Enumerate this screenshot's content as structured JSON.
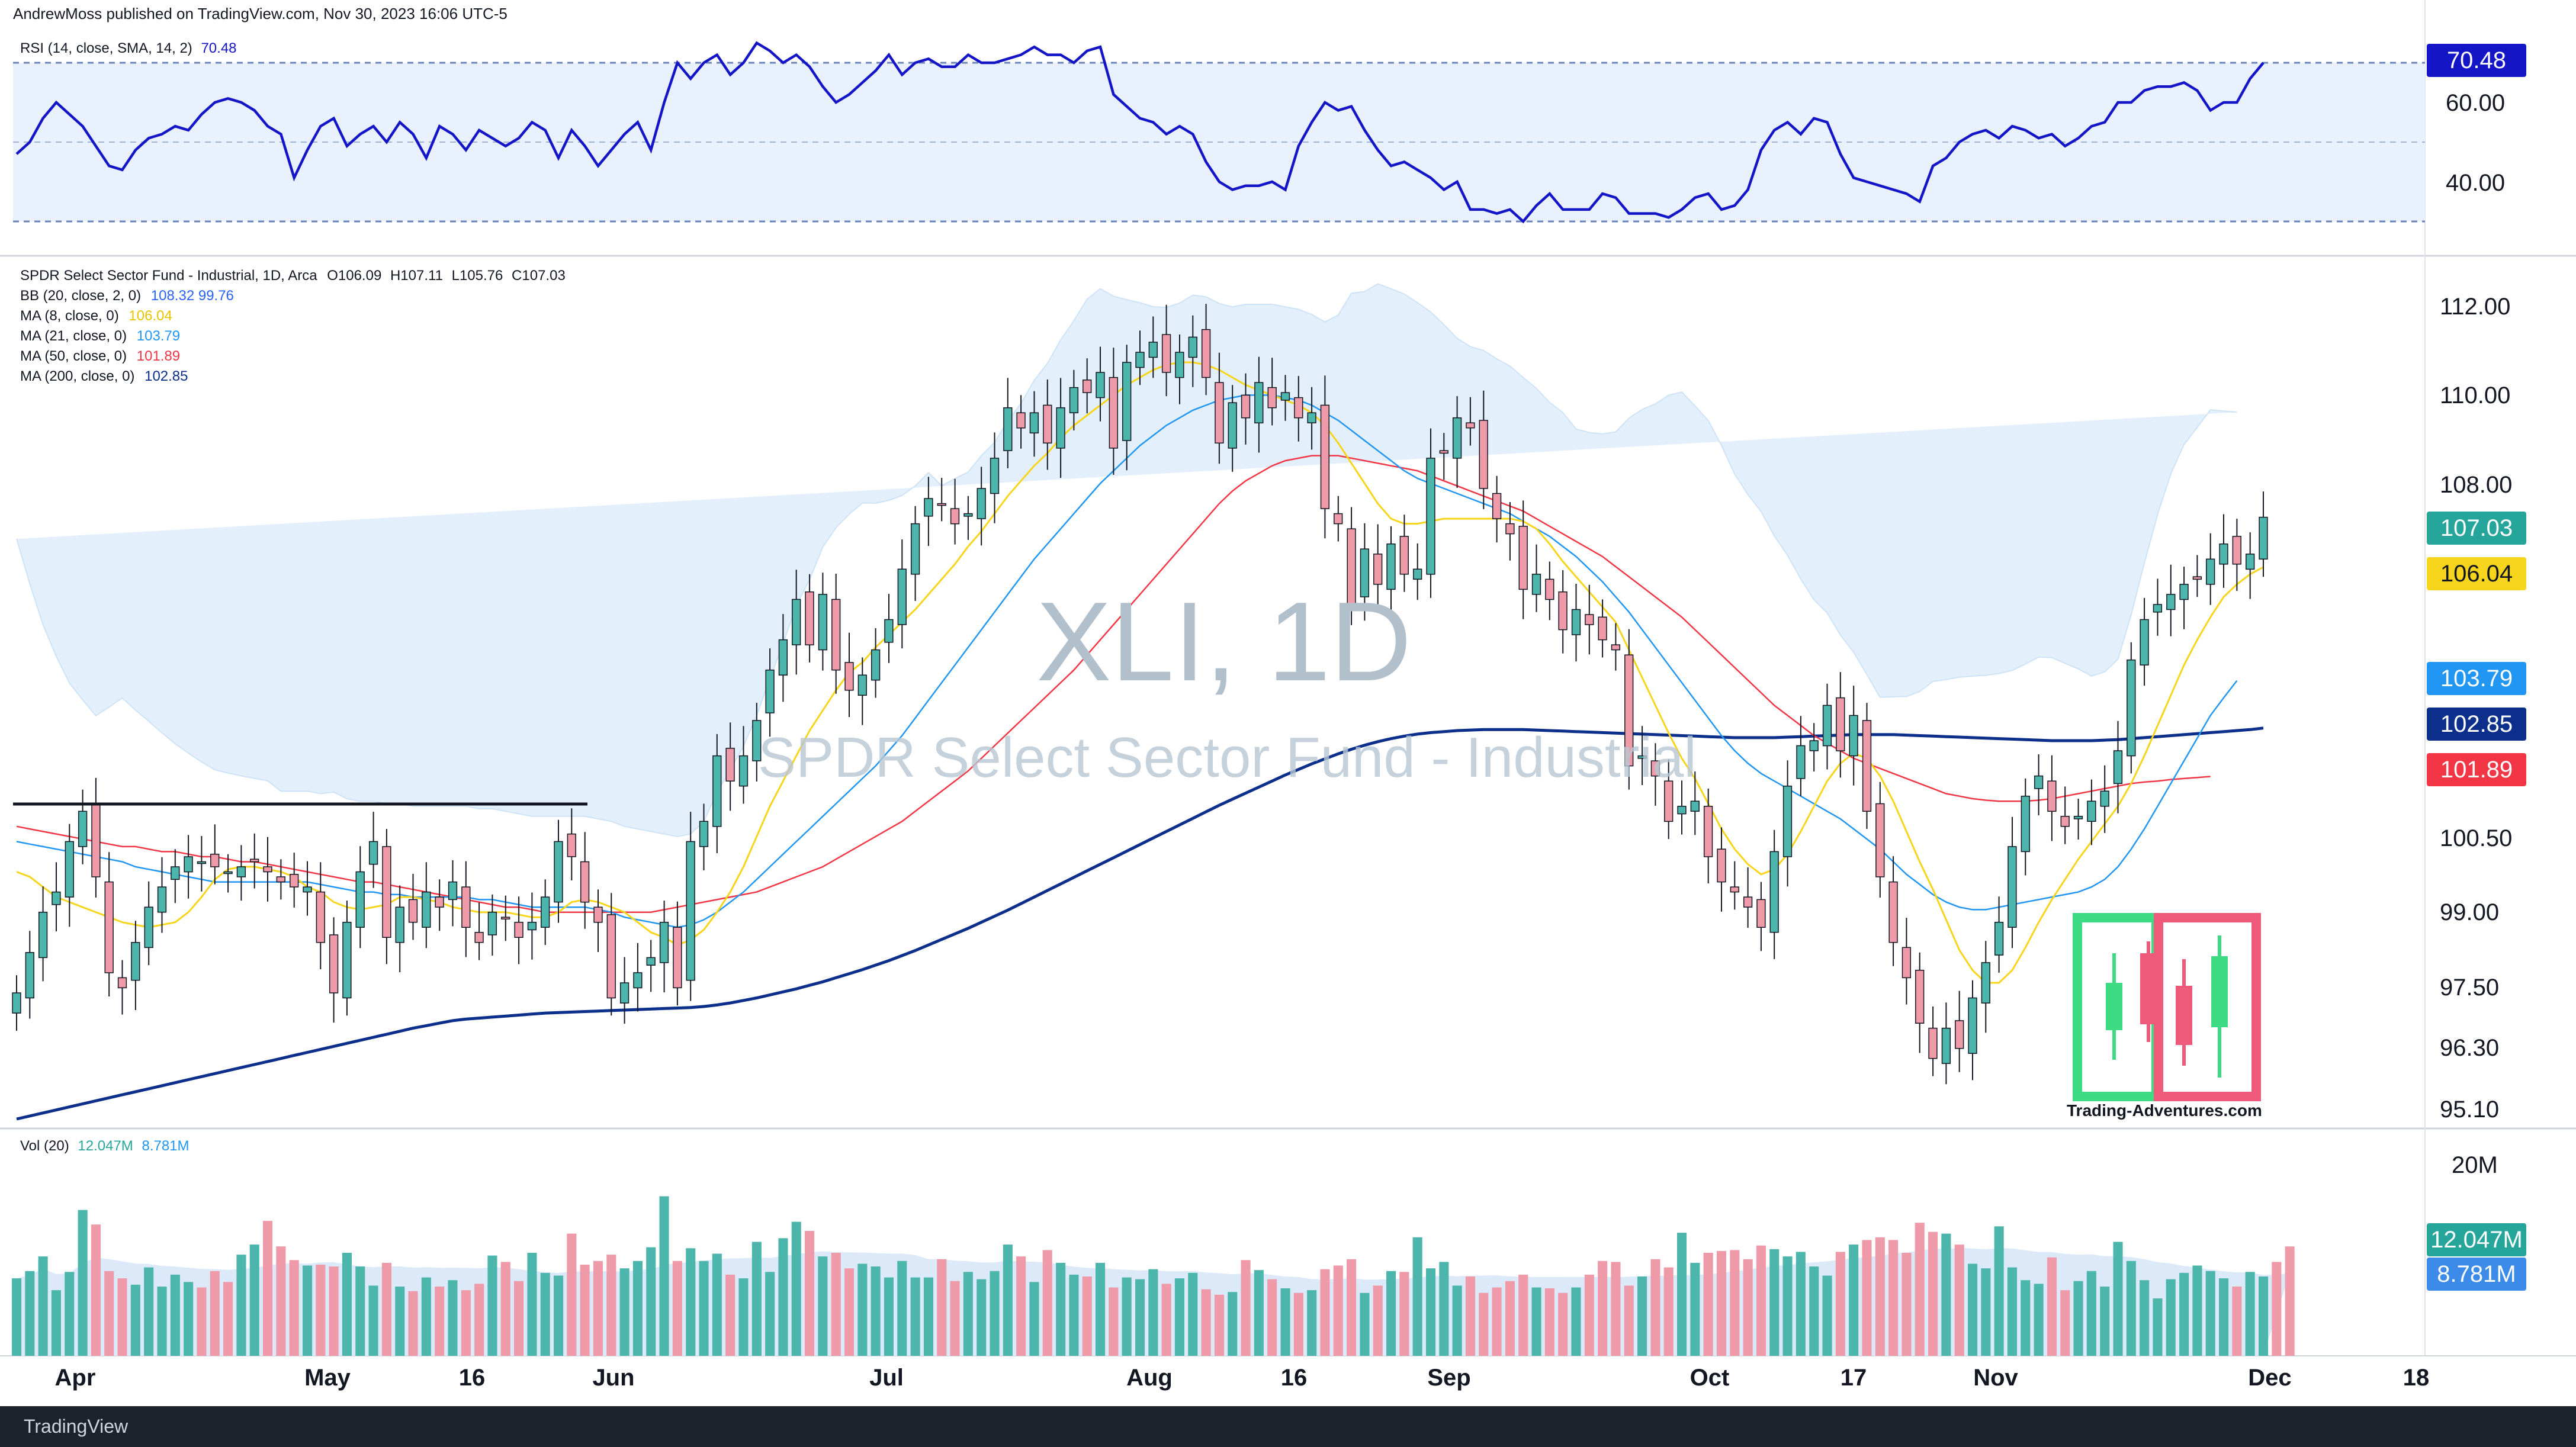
{
  "header": {
    "published": "AndrewMoss published on TradingView.com, Nov 30, 2023 16:06 UTC-5",
    "watermark_symbol": "XLI, 1D",
    "watermark_name": "SPDR Select Sector Fund - Industrial",
    "brand_text": "Trading-Adventures.com",
    "footer_logo_text": "TradingView"
  },
  "rsi_pane": {
    "title": "RSI (14, close, SMA, 14, 2)",
    "value": "70.48"
  },
  "price_pane": {
    "title": "SPDR Select Sector Fund - Industrial, 1D, Arca",
    "open_label": "O106.09",
    "high_label": "H107.11",
    "low_label": "L105.76",
    "close_label": "C107.03",
    "indicators": [
      {
        "label": "BB (20, close, 2, 0)",
        "values": "108.32  99.76",
        "color": "#2962ff"
      },
      {
        "label": "MA (8, close, 0)",
        "values": "106.04",
        "color": "#f7d51d"
      },
      {
        "label": "MA (21, close, 0)",
        "values": "103.79",
        "color": "#2196f3"
      },
      {
        "label": "MA (50, close, 0)",
        "values": "101.89",
        "color": "#f23645"
      },
      {
        "label": "MA (200, close, 0)",
        "values": "102.85",
        "color": "#0d2f8c"
      }
    ]
  },
  "volume_pane": {
    "title": "Vol (20)",
    "value1": "12.047M",
    "value2": "8.781M"
  },
  "badges": {
    "rsi": "70.48",
    "close": "107.03",
    "ma8": "106.04",
    "ma21": "103.79",
    "ma200": "102.85",
    "ma50": "101.89",
    "vol": "12.047M",
    "volma": "8.781M"
  },
  "colors": {
    "up": "#4db6ac",
    "down": "#ef9aa9",
    "rsi": "#1515c8",
    "ma8": "#f7d51d",
    "ma21": "#2196f3",
    "ma50": "#f23645",
    "ma200": "#0d2f8c",
    "bb_fill": "#e3f0fb"
  },
  "chart_data": {
    "type": "candlestick",
    "x_ticks": [
      "Apr",
      "May",
      "16",
      "Jun",
      "Jul",
      "Aug",
      "16",
      "Sep",
      "Oct",
      "17",
      "Nov",
      "Dec",
      "18"
    ],
    "y_ticks": [
      "112.00",
      "110.00",
      "108.00",
      "100.50",
      "99.00",
      "97.50",
      "96.30",
      "95.10"
    ],
    "rsi_ticks": [
      "60.00",
      "40.00"
    ],
    "volume_ticks": [
      "20M"
    ],
    "closes": [
      97.6,
      98.4,
      99.2,
      99.6,
      100.6,
      101.2,
      99.9,
      98.0,
      97.7,
      98.6,
      99.3,
      99.7,
      100.1,
      100.3,
      100.2,
      100.1,
      100.0,
      100.1,
      100.2,
      100.0,
      99.8,
      99.7,
      99.7,
      98.6,
      97.6,
      99.0,
      100.0,
      100.6,
      98.7,
      99.3,
      99.0,
      99.6,
      99.3,
      99.8,
      98.9,
      98.6,
      99.2,
      99.1,
      98.7,
      99.0,
      99.5,
      100.6,
      100.3,
      99.4,
      99.0,
      97.5,
      97.8,
      98.0,
      98.3,
      99.0,
      97.7,
      100.6,
      101.0,
      102.3,
      101.8,
      102.3,
      103.0,
      104.0,
      104.6,
      105.4,
      104.5,
      105.5,
      104.0,
      103.6,
      103.9,
      104.4,
      105.0,
      106.0,
      106.9,
      107.4,
      107.3,
      106.9,
      107.1,
      107.6,
      108.2,
      109.2,
      108.8,
      109.1,
      108.5,
      109.2,
      109.6,
      109.5,
      109.9,
      108.4,
      110.1,
      110.3,
      110.5,
      109.9,
      110.3,
      110.6,
      109.8,
      108.5,
      109.3,
      109.0,
      109.7,
      109.2,
      109.5,
      109.0,
      109.1,
      107.2,
      106.9,
      105.3,
      106.4,
      105.7,
      106.5,
      105.9,
      106.0,
      108.2,
      108.3,
      109.0,
      108.8,
      107.6,
      107.0,
      106.7,
      105.6,
      105.9,
      105.4,
      104.8,
      105.2,
      104.9,
      104.6,
      104.4,
      102.1,
      102.3,
      101.9,
      101.0,
      101.3,
      101.4,
      100.3,
      99.8,
      99.6,
      99.3,
      98.9,
      100.4,
      101.7,
      102.5,
      102.6,
      103.3,
      102.4,
      103.1,
      101.2,
      99.9,
      98.6,
      97.9,
      97.0,
      96.3,
      96.9,
      96.5,
      97.5,
      98.2,
      99.0,
      100.5,
      101.5,
      101.9,
      101.2,
      100.9,
      101.1,
      101.4,
      101.6,
      102.4,
      104.2,
      105.0,
      105.3,
      105.5,
      105.7,
      105.8,
      106.2,
      106.5,
      106.1,
      106.3,
      107.03
    ],
    "ma8": [
      100.0,
      99.9,
      99.7,
      99.5,
      99.4,
      99.3,
      99.2,
      99.1,
      99.0,
      98.95,
      98.9,
      98.95,
      99.0,
      99.2,
      99.5,
      99.85,
      100.05,
      100.1,
      100.1,
      100.05,
      100.0,
      99.9,
      99.7,
      99.6,
      99.4,
      99.3,
      99.25,
      99.3,
      99.35,
      99.5,
      99.5,
      99.45,
      99.4,
      99.3,
      99.25,
      99.2,
      99.2,
      99.2,
      99.15,
      99.1,
      99.1,
      99.2,
      99.4,
      99.45,
      99.4,
      99.3,
      99.2,
      99.0,
      98.8,
      98.7,
      98.55,
      98.65,
      98.85,
      99.2,
      99.6,
      100.1,
      100.7,
      101.3,
      101.8,
      102.3,
      102.8,
      103.2,
      103.6,
      103.95,
      104.15,
      104.45,
      104.7,
      104.95,
      105.2,
      105.5,
      105.8,
      106.1,
      106.45,
      106.75,
      107.1,
      107.45,
      107.75,
      108.05,
      108.3,
      108.6,
      108.85,
      109.05,
      109.25,
      109.45,
      109.65,
      109.8,
      109.95,
      110.05,
      110.1,
      110.1,
      110.05,
      109.95,
      109.8,
      109.65,
      109.55,
      109.45,
      109.35,
      109.25,
      109.1,
      108.85,
      108.5,
      108.1,
      107.7,
      107.3,
      107.0,
      106.9,
      106.9,
      106.95,
      107.0,
      107.0,
      107.0,
      107.0,
      107.0,
      107.0,
      106.95,
      106.8,
      106.5,
      106.15,
      105.85,
      105.55,
      105.25,
      104.95,
      104.4,
      103.85,
      103.3,
      102.75,
      102.25,
      101.85,
      101.35,
      100.85,
      100.45,
      100.15,
      99.95,
      100.05,
      100.35,
      100.8,
      101.3,
      101.8,
      102.15,
      102.35,
      102.25,
      101.9,
      101.4,
      100.8,
      100.2,
      99.65,
      99.05,
      98.45,
      98.05,
      97.8,
      97.8,
      98.05,
      98.5,
      99.0,
      99.45,
      99.85,
      100.25,
      100.6,
      100.95,
      101.3,
      101.75,
      102.3,
      102.9,
      103.5,
      104.1,
      104.6,
      105.05,
      105.45,
      105.7,
      105.9,
      106.04
    ],
    "ma21": [
      100.6,
      100.55,
      100.5,
      100.45,
      100.4,
      100.35,
      100.3,
      100.25,
      100.2,
      100.1,
      100.05,
      100.0,
      99.95,
      99.9,
      99.85,
      99.8,
      99.8,
      99.8,
      99.8,
      99.8,
      99.8,
      99.8,
      99.8,
      99.75,
      99.7,
      99.65,
      99.6,
      99.6,
      99.55,
      99.55,
      99.5,
      99.5,
      99.5,
      99.5,
      99.5,
      99.45,
      99.45,
      99.4,
      99.35,
      99.3,
      99.3,
      99.3,
      99.3,
      99.3,
      99.25,
      99.2,
      99.1,
      99.05,
      99.0,
      98.95,
      98.9,
      98.95,
      99.05,
      99.2,
      99.4,
      99.6,
      99.85,
      100.1,
      100.35,
      100.6,
      100.85,
      101.1,
      101.35,
      101.6,
      101.85,
      102.1,
      102.4,
      102.7,
      103.05,
      103.4,
      103.75,
      104.1,
      104.45,
      104.8,
      105.15,
      105.5,
      105.85,
      106.2,
      106.5,
      106.8,
      107.1,
      107.4,
      107.7,
      107.95,
      108.2,
      108.45,
      108.65,
      108.85,
      109.0,
      109.15,
      109.25,
      109.35,
      109.4,
      109.45,
      109.45,
      109.45,
      109.4,
      109.35,
      109.25,
      109.1,
      108.95,
      108.75,
      108.55,
      108.35,
      108.15,
      107.95,
      107.8,
      107.7,
      107.6,
      107.5,
      107.4,
      107.3,
      107.2,
      107.1,
      106.95,
      106.8,
      106.65,
      106.45,
      106.25,
      106.0,
      105.75,
      105.45,
      105.15,
      104.8,
      104.45,
      104.1,
      103.75,
      103.4,
      103.05,
      102.7,
      102.4,
      102.15,
      101.95,
      101.8,
      101.65,
      101.5,
      101.35,
      101.2,
      101.05,
      100.85,
      100.65,
      100.45,
      100.2,
      99.95,
      99.75,
      99.55,
      99.4,
      99.3,
      99.25,
      99.25,
      99.3,
      99.35,
      99.4,
      99.45,
      99.5,
      99.55,
      99.6,
      99.7,
      99.85,
      100.1,
      100.45,
      100.85,
      101.3,
      101.75,
      102.2,
      102.65,
      103.1,
      103.45,
      103.79
    ],
    "ma50": [
      100.9,
      100.85,
      100.8,
      100.75,
      100.7,
      100.65,
      100.6,
      100.55,
      100.5,
      100.5,
      100.45,
      100.4,
      100.4,
      100.35,
      100.3,
      100.3,
      100.25,
      100.2,
      100.2,
      100.15,
      100.1,
      100.05,
      100.0,
      99.95,
      99.9,
      99.85,
      99.8,
      99.8,
      99.75,
      99.7,
      99.65,
      99.6,
      99.55,
      99.5,
      99.45,
      99.4,
      99.35,
      99.3,
      99.3,
      99.25,
      99.2,
      99.2,
      99.2,
      99.2,
      99.2,
      99.2,
      99.2,
      99.2,
      99.2,
      99.25,
      99.3,
      99.35,
      99.4,
      99.45,
      99.5,
      99.55,
      99.6,
      99.7,
      99.8,
      99.9,
      100.0,
      100.1,
      100.25,
      100.4,
      100.55,
      100.7,
      100.85,
      101.0,
      101.2,
      101.4,
      101.6,
      101.8,
      102.0,
      102.25,
      102.5,
      102.75,
      103.0,
      103.25,
      103.5,
      103.75,
      104.0,
      104.3,
      104.6,
      104.9,
      105.2,
      105.5,
      105.8,
      106.1,
      106.4,
      106.7,
      107.0,
      107.3,
      107.55,
      107.75,
      107.9,
      108.05,
      108.15,
      108.2,
      108.25,
      108.25,
      108.25,
      108.2,
      108.15,
      108.1,
      108.05,
      108.0,
      107.95,
      107.85,
      107.75,
      107.65,
      107.55,
      107.45,
      107.35,
      107.25,
      107.15,
      107.0,
      106.85,
      106.7,
      106.55,
      106.4,
      106.25,
      106.05,
      105.85,
      105.65,
      105.45,
      105.25,
      105.05,
      104.8,
      104.55,
      104.3,
      104.05,
      103.8,
      103.55,
      103.3,
      103.1,
      102.9,
      102.7,
      102.55,
      102.4,
      102.25,
      102.15,
      102.05,
      101.95,
      101.85,
      101.75,
      101.65,
      101.55,
      101.5,
      101.45,
      101.42,
      101.4,
      101.4,
      101.4,
      101.42,
      101.45,
      101.5,
      101.55,
      101.6,
      101.65,
      101.7,
      101.75,
      101.78,
      101.8,
      101.83,
      101.85,
      101.87,
      101.89
    ],
    "ma200": [
      95.1,
      95.16,
      95.22,
      95.28,
      95.34,
      95.4,
      95.46,
      95.52,
      95.58,
      95.64,
      95.7,
      95.76,
      95.82,
      95.88,
      95.94,
      96.0,
      96.06,
      96.12,
      96.18,
      96.24,
      96.3,
      96.36,
      96.42,
      96.48,
      96.54,
      96.6,
      96.66,
      96.72,
      96.78,
      96.84,
      96.9,
      96.95,
      97.0,
      97.05,
      97.08,
      97.1,
      97.12,
      97.14,
      97.16,
      97.18,
      97.2,
      97.21,
      97.22,
      97.23,
      97.24,
      97.25,
      97.26,
      97.27,
      97.28,
      97.29,
      97.3,
      97.31,
      97.33,
      97.36,
      97.4,
      97.45,
      97.5,
      97.56,
      97.62,
      97.68,
      97.75,
      97.82,
      97.9,
      97.98,
      98.06,
      98.15,
      98.24,
      98.34,
      98.44,
      98.55,
      98.66,
      98.77,
      98.88,
      99.0,
      99.12,
      99.24,
      99.37,
      99.5,
      99.63,
      99.76,
      99.89,
      100.02,
      100.15,
      100.28,
      100.41,
      100.54,
      100.67,
      100.8,
      100.93,
      101.06,
      101.19,
      101.32,
      101.44,
      101.56,
      101.68,
      101.8,
      101.92,
      102.03,
      102.14,
      102.24,
      102.34,
      102.43,
      102.51,
      102.58,
      102.64,
      102.69,
      102.73,
      102.76,
      102.78,
      102.8,
      102.81,
      102.82,
      102.82,
      102.82,
      102.82,
      102.81,
      102.8,
      102.79,
      102.78,
      102.77,
      102.76,
      102.75,
      102.74,
      102.73,
      102.72,
      102.71,
      102.7,
      102.69,
      102.68,
      102.67,
      102.66,
      102.66,
      102.66,
      102.66,
      102.67,
      102.68,
      102.69,
      102.7,
      102.71,
      102.72,
      102.72,
      102.72,
      102.72,
      102.71,
      102.7,
      102.69,
      102.68,
      102.67,
      102.66,
      102.65,
      102.64,
      102.63,
      102.62,
      102.61,
      102.6,
      102.6,
      102.6,
      102.6,
      102.61,
      102.62,
      102.64,
      102.66,
      102.68,
      102.7,
      102.72,
      102.74,
      102.76,
      102.78,
      102.8,
      102.82,
      102.85
    ],
    "rsi": [
      47,
      50,
      56,
      60,
      57,
      54,
      49,
      44,
      43,
      48,
      51,
      52,
      54,
      53,
      57,
      60,
      61,
      60,
      58,
      54,
      52,
      41,
      48,
      54,
      56,
      49,
      52,
      54,
      50,
      55,
      52,
      46,
      54,
      52,
      48,
      53,
      51,
      49,
      51,
      55,
      53,
      46,
      53,
      49,
      44,
      48,
      52,
      55,
      48,
      60,
      70,
      66,
      70,
      72,
      67,
      70,
      75,
      73,
      70,
      72,
      69,
      64,
      60,
      62,
      65,
      68,
      72,
      67,
      70,
      71,
      69,
      69,
      72,
      70,
      70,
      71,
      72,
      74,
      72,
      72,
      70,
      73,
      74,
      62,
      59,
      56,
      55,
      52,
      54,
      52,
      45,
      40,
      38,
      39,
      39,
      40,
      38,
      49,
      55,
      60,
      58,
      59,
      53,
      48,
      44,
      45,
      43,
      41,
      38,
      40,
      33,
      33,
      32,
      33,
      30,
      34,
      37,
      33,
      33,
      33,
      37,
      36,
      32,
      32,
      32,
      31,
      33,
      36,
      37,
      33,
      34,
      38,
      48,
      53,
      55,
      52,
      56,
      55,
      47,
      41,
      40,
      39,
      38,
      37,
      35,
      44,
      46,
      50,
      52,
      53,
      51,
      54,
      53,
      51,
      52,
      49,
      51,
      54,
      55,
      60,
      60,
      63,
      64,
      64,
      65,
      63,
      58,
      60,
      60,
      66,
      70
    ],
    "volume_m": [
      8.5,
      9.3,
      10.9,
      7.2,
      9.2,
      16.0,
      14.4,
      9.3,
      8.5,
      7.8,
      9.7,
      7.6,
      8.9,
      8.1,
      7.5,
      9.3,
      8.1,
      11.1,
      12.2,
      14.8,
      12.0,
      10.5,
      9.9,
      10.0,
      9.8,
      11.3,
      9.8,
      7.7,
      10.2,
      7.6,
      7.1,
      8.6,
      7.6,
      8.3,
      7.2,
      7.9,
      11.0,
      10.3,
      8.2,
      11.3,
      9.1,
      8.8,
      13.4,
      10.0,
      10.4,
      11.1,
      9.6,
      10.4,
      11.9,
      17.5,
      10.4,
      11.8,
      10.4,
      11.2,
      8.9,
      8.5,
      12.5,
      9.2,
      12.9,
      14.7,
      13.7,
      10.9,
      11.3,
      9.6,
      10.1,
      9.8,
      8.6,
      10.4,
      8.6,
      8.6,
      10.6,
      8.2,
      9.2,
      8.4,
      9.3,
      12.2,
      10.9,
      8.1,
      11.6,
      10.2,
      8.9,
      8.7,
      10.2,
      7.5,
      8.6,
      8.4,
      9.5,
      7.9,
      8.5,
      9.1,
      7.3,
      6.7,
      7.0,
      10.5,
      9.4,
      8.4,
      7.4,
      6.9,
      7.2,
      9.5,
      9.9,
      10.6,
      6.9,
      7.7,
      9.3,
      9.2,
      13.0,
      9.6,
      10.3,
      7.7,
      8.7,
      6.9,
      7.5,
      8.2,
      8.9,
      7.5,
      7.4,
      6.9,
      7.5,
      8.9,
      10.4,
      10.3,
      7.7,
      8.7,
      10.6,
      9.7,
      13.5,
      10.2,
      11.3,
      11.5,
      11.6,
      10.6,
      12.1,
      11.7,
      10.9,
      11.4,
      9.8,
      8.8,
      11.4,
      12.2,
      12.7,
      13.0,
      12.7,
      11.3,
      14.6,
      13.6,
      13.4,
      12.2,
      10.1,
      9.6,
      14.2,
      9.7,
      8.3,
      7.9,
      10.8,
      7.2,
      8.2,
      9.3,
      7.6,
      12.5,
      10.4,
      8.3,
      6.3,
      8.4,
      9.1,
      9.9,
      9.3,
      8.5,
      7.6,
      9.2,
      8.7,
      10.3,
      12.0
    ]
  }
}
